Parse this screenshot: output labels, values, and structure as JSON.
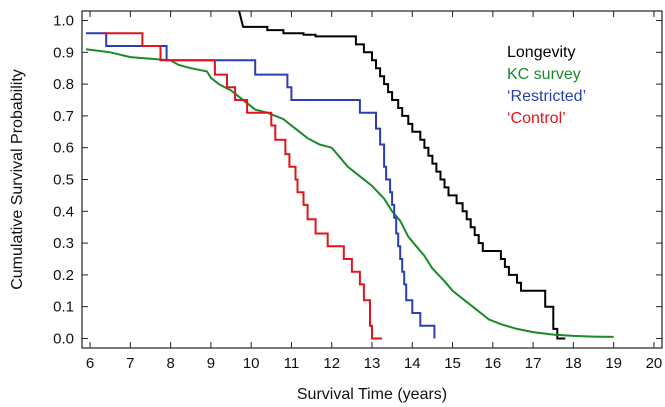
{
  "chart_data": {
    "type": "line",
    "step": true,
    "xlabel": "Survival Time (years)",
    "ylabel": "Cumulative Survival Probability",
    "xlim": [
      5.8,
      20.2
    ],
    "ylim": [
      -0.03,
      1.03
    ],
    "xticks": [
      6,
      7,
      8,
      9,
      10,
      11,
      12,
      13,
      14,
      15,
      16,
      17,
      18,
      19,
      20
    ],
    "yticks": [
      "0.0",
      "0.1",
      "0.2",
      "0.3",
      "0.4",
      "0.5",
      "0.6",
      "0.7",
      "0.8",
      "0.9",
      "1.0"
    ],
    "grid": false,
    "legend": {
      "placement": "top-right",
      "items": [
        {
          "label": "Longevity",
          "color": "#000000"
        },
        {
          "label": "KC survey",
          "color": "#1a8a2a"
        },
        {
          "label": "‘Restricted’",
          "color": "#2b3fb5"
        },
        {
          "label": "‘Control’",
          "color": "#e3121c"
        }
      ]
    },
    "series": [
      {
        "color": "#000000",
        "points": [
          [
            9.7,
            1.03
          ],
          [
            9.8,
            0.98
          ],
          [
            10.4,
            0.98
          ],
          [
            10.4,
            0.97
          ],
          [
            10.8,
            0.97
          ],
          [
            10.8,
            0.96
          ],
          [
            11.3,
            0.96
          ],
          [
            11.3,
            0.955
          ],
          [
            11.6,
            0.955
          ],
          [
            11.6,
            0.95
          ],
          [
            12.6,
            0.95
          ],
          [
            12.6,
            0.925
          ],
          [
            12.8,
            0.925
          ],
          [
            12.8,
            0.9
          ],
          [
            13.0,
            0.9
          ],
          [
            13.0,
            0.875
          ],
          [
            13.1,
            0.875
          ],
          [
            13.1,
            0.85
          ],
          [
            13.2,
            0.85
          ],
          [
            13.2,
            0.825
          ],
          [
            13.3,
            0.825
          ],
          [
            13.3,
            0.8
          ],
          [
            13.4,
            0.8
          ],
          [
            13.4,
            0.775
          ],
          [
            13.5,
            0.775
          ],
          [
            13.5,
            0.75
          ],
          [
            13.65,
            0.75
          ],
          [
            13.65,
            0.725
          ],
          [
            13.75,
            0.725
          ],
          [
            13.75,
            0.7
          ],
          [
            13.9,
            0.7
          ],
          [
            13.9,
            0.675
          ],
          [
            14.0,
            0.675
          ],
          [
            14.0,
            0.65
          ],
          [
            14.2,
            0.65
          ],
          [
            14.2,
            0.625
          ],
          [
            14.3,
            0.625
          ],
          [
            14.3,
            0.6
          ],
          [
            14.4,
            0.6
          ],
          [
            14.4,
            0.575
          ],
          [
            14.5,
            0.575
          ],
          [
            14.5,
            0.55
          ],
          [
            14.6,
            0.55
          ],
          [
            14.6,
            0.525
          ],
          [
            14.7,
            0.525
          ],
          [
            14.7,
            0.5
          ],
          [
            14.8,
            0.5
          ],
          [
            14.8,
            0.475
          ],
          [
            14.9,
            0.475
          ],
          [
            14.9,
            0.45
          ],
          [
            15.1,
            0.45
          ],
          [
            15.1,
            0.425
          ],
          [
            15.25,
            0.425
          ],
          [
            15.25,
            0.4
          ],
          [
            15.35,
            0.4
          ],
          [
            15.35,
            0.375
          ],
          [
            15.45,
            0.375
          ],
          [
            15.45,
            0.35
          ],
          [
            15.55,
            0.35
          ],
          [
            15.55,
            0.325
          ],
          [
            15.65,
            0.325
          ],
          [
            15.65,
            0.3
          ],
          [
            15.75,
            0.3
          ],
          [
            15.75,
            0.275
          ],
          [
            16.2,
            0.275
          ],
          [
            16.2,
            0.25
          ],
          [
            16.3,
            0.25
          ],
          [
            16.3,
            0.225
          ],
          [
            16.4,
            0.225
          ],
          [
            16.4,
            0.2
          ],
          [
            16.6,
            0.2
          ],
          [
            16.6,
            0.175
          ],
          [
            16.7,
            0.175
          ],
          [
            16.7,
            0.15
          ],
          [
            17.3,
            0.15
          ],
          [
            17.3,
            0.1
          ],
          [
            17.5,
            0.1
          ],
          [
            17.5,
            0.03
          ],
          [
            17.6,
            0.03
          ],
          [
            17.6,
            0.0
          ],
          [
            17.8,
            0.0
          ]
        ]
      },
      {
        "color": "#1a8a2a",
        "points": [
          [
            5.9,
            0.91
          ],
          [
            6.5,
            0.9
          ],
          [
            7.0,
            0.885
          ],
          [
            7.5,
            0.88
          ],
          [
            8.0,
            0.875
          ],
          [
            8.2,
            0.86
          ],
          [
            8.5,
            0.85
          ],
          [
            8.9,
            0.84
          ],
          [
            9.0,
            0.82
          ],
          [
            9.2,
            0.8
          ],
          [
            9.5,
            0.78
          ],
          [
            9.7,
            0.76
          ],
          [
            9.9,
            0.74
          ],
          [
            10.1,
            0.72
          ],
          [
            10.4,
            0.71
          ],
          [
            10.6,
            0.7
          ],
          [
            10.8,
            0.69
          ],
          [
            11.0,
            0.67
          ],
          [
            11.2,
            0.65
          ],
          [
            11.4,
            0.63
          ],
          [
            11.7,
            0.61
          ],
          [
            12.0,
            0.6
          ],
          [
            12.2,
            0.57
          ],
          [
            12.4,
            0.54
          ],
          [
            12.7,
            0.51
          ],
          [
            13.0,
            0.48
          ],
          [
            13.3,
            0.44
          ],
          [
            13.5,
            0.4
          ],
          [
            13.7,
            0.37
          ],
          [
            13.9,
            0.32
          ],
          [
            14.1,
            0.29
          ],
          [
            14.3,
            0.26
          ],
          [
            14.5,
            0.22
          ],
          [
            14.8,
            0.18
          ],
          [
            15.0,
            0.15
          ],
          [
            15.3,
            0.12
          ],
          [
            15.6,
            0.09
          ],
          [
            15.9,
            0.06
          ],
          [
            16.2,
            0.045
          ],
          [
            16.6,
            0.03
          ],
          [
            17.0,
            0.02
          ],
          [
            17.5,
            0.012
          ],
          [
            18.0,
            0.008
          ],
          [
            18.5,
            0.006
          ],
          [
            19.0,
            0.005
          ]
        ]
      },
      {
        "color": "#2b3fb5",
        "points": [
          [
            5.9,
            0.96
          ],
          [
            6.4,
            0.96
          ],
          [
            6.4,
            0.92
          ],
          [
            7.9,
            0.92
          ],
          [
            7.9,
            0.875
          ],
          [
            10.1,
            0.875
          ],
          [
            10.1,
            0.83
          ],
          [
            10.9,
            0.83
          ],
          [
            10.9,
            0.79
          ],
          [
            11.0,
            0.79
          ],
          [
            11.0,
            0.75
          ],
          [
            12.7,
            0.75
          ],
          [
            12.7,
            0.71
          ],
          [
            13.1,
            0.71
          ],
          [
            13.1,
            0.66
          ],
          [
            13.2,
            0.66
          ],
          [
            13.2,
            0.61
          ],
          [
            13.3,
            0.61
          ],
          [
            13.3,
            0.54
          ],
          [
            13.35,
            0.54
          ],
          [
            13.35,
            0.5
          ],
          [
            13.45,
            0.5
          ],
          [
            13.45,
            0.46
          ],
          [
            13.5,
            0.46
          ],
          [
            13.5,
            0.42
          ],
          [
            13.55,
            0.42
          ],
          [
            13.55,
            0.38
          ],
          [
            13.6,
            0.38
          ],
          [
            13.6,
            0.33
          ],
          [
            13.65,
            0.33
          ],
          [
            13.65,
            0.29
          ],
          [
            13.7,
            0.29
          ],
          [
            13.7,
            0.25
          ],
          [
            13.75,
            0.25
          ],
          [
            13.75,
            0.21
          ],
          [
            13.8,
            0.21
          ],
          [
            13.8,
            0.17
          ],
          [
            13.85,
            0.17
          ],
          [
            13.85,
            0.12
          ],
          [
            14.0,
            0.12
          ],
          [
            14.0,
            0.08
          ],
          [
            14.2,
            0.08
          ],
          [
            14.2,
            0.04
          ],
          [
            14.55,
            0.04
          ],
          [
            14.55,
            0.0
          ]
        ]
      },
      {
        "color": "#e3121c",
        "points": [
          [
            6.35,
            0.96
          ],
          [
            7.3,
            0.96
          ],
          [
            7.3,
            0.92
          ],
          [
            7.75,
            0.92
          ],
          [
            7.75,
            0.875
          ],
          [
            9.1,
            0.875
          ],
          [
            9.1,
            0.83
          ],
          [
            9.4,
            0.83
          ],
          [
            9.4,
            0.79
          ],
          [
            9.6,
            0.79
          ],
          [
            9.6,
            0.75
          ],
          [
            9.9,
            0.75
          ],
          [
            9.9,
            0.71
          ],
          [
            10.5,
            0.71
          ],
          [
            10.5,
            0.67
          ],
          [
            10.6,
            0.67
          ],
          [
            10.6,
            0.625
          ],
          [
            10.85,
            0.625
          ],
          [
            10.85,
            0.58
          ],
          [
            10.95,
            0.58
          ],
          [
            10.95,
            0.54
          ],
          [
            11.1,
            0.54
          ],
          [
            11.1,
            0.5
          ],
          [
            11.15,
            0.5
          ],
          [
            11.15,
            0.46
          ],
          [
            11.3,
            0.46
          ],
          [
            11.3,
            0.42
          ],
          [
            11.4,
            0.42
          ],
          [
            11.4,
            0.375
          ],
          [
            11.6,
            0.375
          ],
          [
            11.6,
            0.33
          ],
          [
            11.9,
            0.33
          ],
          [
            11.9,
            0.29
          ],
          [
            12.3,
            0.29
          ],
          [
            12.3,
            0.25
          ],
          [
            12.5,
            0.25
          ],
          [
            12.5,
            0.21
          ],
          [
            12.7,
            0.21
          ],
          [
            12.7,
            0.17
          ],
          [
            12.8,
            0.17
          ],
          [
            12.8,
            0.12
          ],
          [
            12.95,
            0.12
          ],
          [
            12.95,
            0.04
          ],
          [
            13.0,
            0.04
          ],
          [
            13.0,
            0.0
          ],
          [
            13.25,
            0.0
          ]
        ]
      }
    ]
  }
}
